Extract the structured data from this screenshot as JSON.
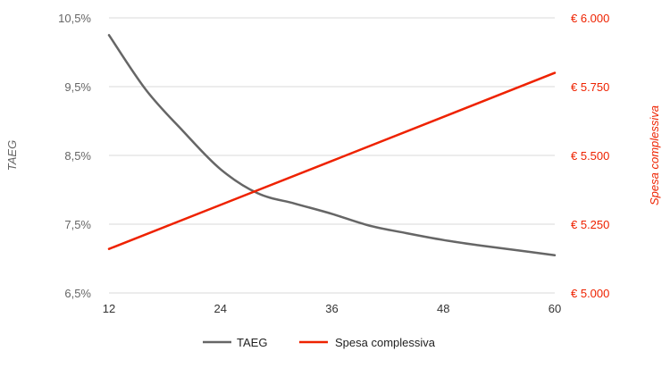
{
  "chart_data": {
    "type": "line",
    "x": [
      12,
      24,
      36,
      48,
      60
    ],
    "series": [
      {
        "name": "TAEG",
        "axis": "left",
        "color": "#666666",
        "points": [
          [
            12,
            10.25
          ],
          [
            16,
            9.45
          ],
          [
            20,
            8.85
          ],
          [
            24,
            8.3
          ],
          [
            28,
            7.95
          ],
          [
            32,
            7.8
          ],
          [
            36,
            7.65
          ],
          [
            40,
            7.48
          ],
          [
            44,
            7.37
          ],
          [
            48,
            7.27
          ],
          [
            52,
            7.19
          ],
          [
            56,
            7.12
          ],
          [
            60,
            7.05
          ]
        ]
      },
      {
        "name": "Spesa complessiva",
        "axis": "right",
        "color": "#ee2200",
        "points": [
          [
            12,
            5160
          ],
          [
            60,
            5800
          ]
        ]
      }
    ],
    "xlim": [
      12,
      60
    ],
    "ylim_left": [
      6.5,
      10.5
    ],
    "ylim_right": [
      5000,
      6000
    ],
    "xticks": [
      "12",
      "24",
      "36",
      "48",
      "60"
    ],
    "yticks_left": [
      "10,5%",
      "9,5%",
      "8,5%",
      "7,5%",
      "6,5%"
    ],
    "yticks_right": [
      "€ 6.000",
      "€ 5.750",
      "€ 5.500",
      "€ 5.250",
      "€ 5.000"
    ],
    "ylabel_left": "TAEG",
    "ylabel_right": "Spesa complessiva",
    "legend_position": "bottom",
    "grid": true,
    "colors": {
      "grid": "#d9d9d9",
      "taeg": "#666666",
      "spesa": "#ee2200",
      "right_axis_text": "#ee2200"
    }
  }
}
